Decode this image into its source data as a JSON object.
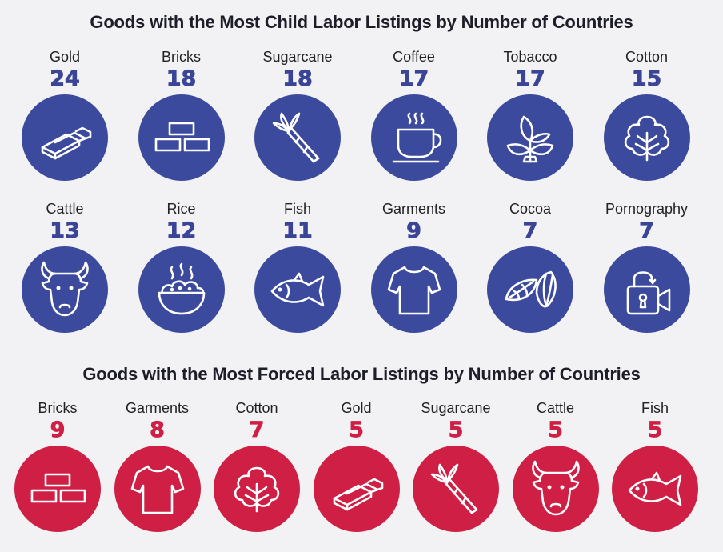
{
  "child_title": "Goods with the Most Child Labor Listings by Number of Countries",
  "forced_title": "Goods with the Most Forced Labor Listings by Number of Countries",
  "colors": {
    "child": "#3b4a9c",
    "forced": "#cf1f44",
    "background": "#f2f2f4"
  },
  "chart_data": [
    {
      "type": "bar",
      "title": "Goods with the Most Child Labor Listings by Number of Countries",
      "categories": [
        "Gold",
        "Bricks",
        "Sugarcane",
        "Coffee",
        "Tobacco",
        "Cotton",
        "Cattle",
        "Rice",
        "Fish",
        "Garments",
        "Cocoa",
        "Pornography"
      ],
      "values": [
        24,
        18,
        18,
        17,
        17,
        15,
        13,
        12,
        11,
        9,
        7,
        7
      ],
      "icons": [
        "gold-icon",
        "bricks-icon",
        "sugarcane-icon",
        "coffee-icon",
        "tobacco-icon",
        "cotton-icon",
        "cattle-icon",
        "rice-icon",
        "fish-icon",
        "garments-icon",
        "cocoa-icon",
        "pornography-icon"
      ]
    },
    {
      "type": "bar",
      "title": "Goods with the Most Forced Labor Listings by Number of Countries",
      "categories": [
        "Bricks",
        "Garments",
        "Cotton",
        "Gold",
        "Sugarcane",
        "Cattle",
        "Fish"
      ],
      "values": [
        9,
        8,
        7,
        5,
        5,
        5,
        5
      ],
      "icons": [
        "bricks-icon",
        "garments-icon",
        "cotton-icon",
        "gold-icon",
        "sugarcane-icon",
        "cattle-icon",
        "fish-icon"
      ]
    }
  ]
}
